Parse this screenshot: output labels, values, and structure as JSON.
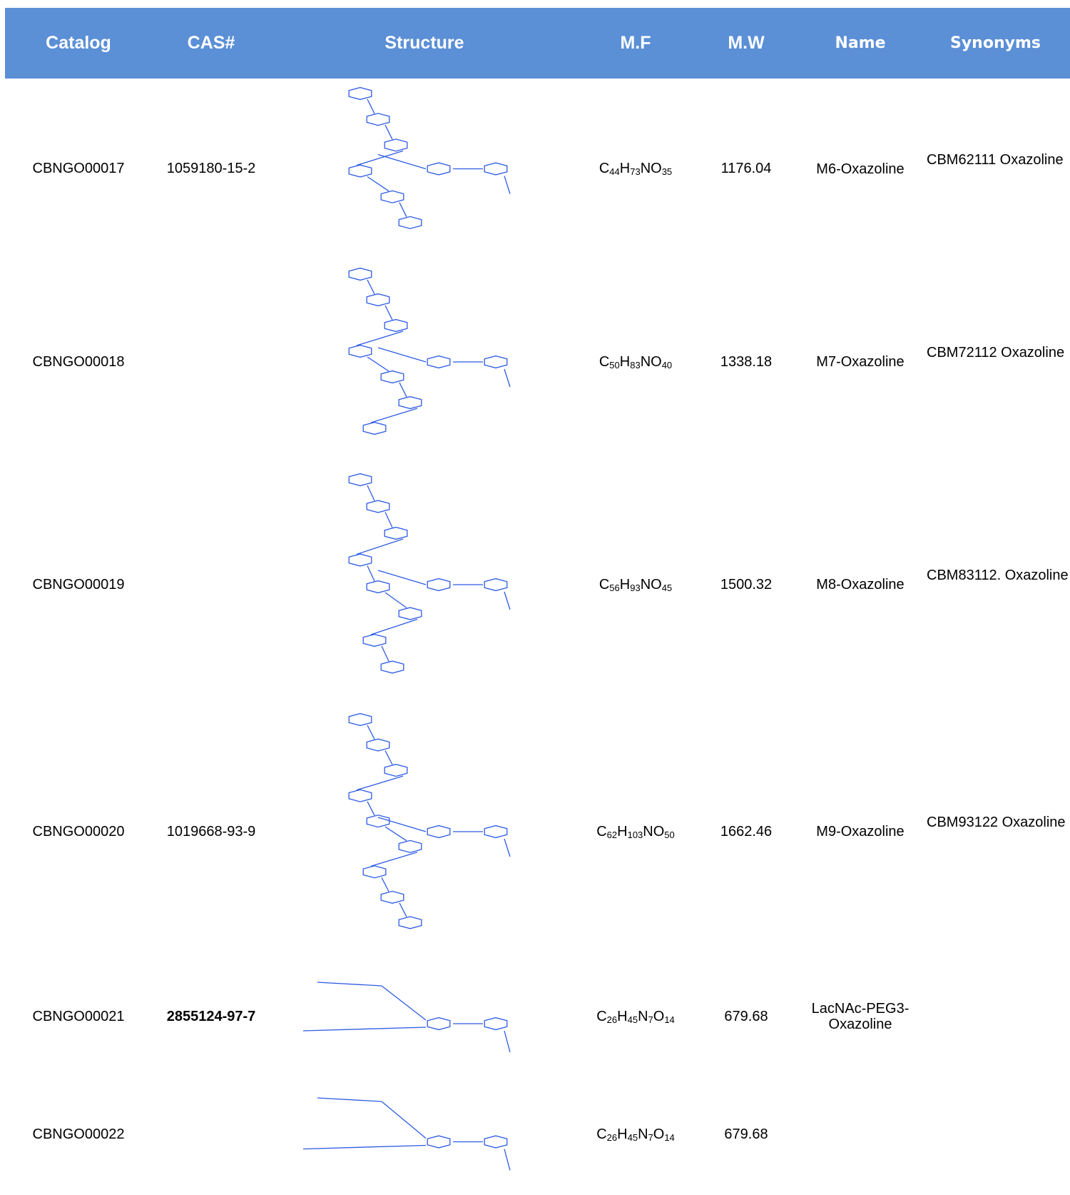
{
  "table": {
    "header": [
      "Catalog",
      "CAS#",
      "Structure",
      "M.F",
      "M.W",
      "Name",
      "Synonyms"
    ],
    "rows": [
      {
        "catalog": "CBNGO00017",
        "cas": "1059180-15-2",
        "formula": "C44H73NO35",
        "mw": "1176.04",
        "name": "M6-Oxazoline",
        "synonyms": "CBM62111 Oxazoline"
      },
      {
        "catalog": "CBNGO00018",
        "cas": null,
        "formula": "C50H83NO40",
        "mw": "1338.18",
        "name": "M7-Oxazoline",
        "synonyms": "CBM72112 Oxazoline"
      },
      {
        "catalog": "CBNGO00019",
        "cas": null,
        "formula": "C56H93NO45",
        "mw": "1500.32",
        "name": "M8-Oxazoline",
        "synonyms": "CBM83112. Oxazoline"
      },
      {
        "catalog": "CBNGO00020",
        "cas": "1019668-93-9",
        "formula": "C62H103NO50",
        "mw": "1662.46",
        "name": "M9-Oxazoline",
        "synonyms": "CBM93122 Oxazoline"
      },
      {
        "catalog": "CBNGO00021",
        "cas": "2855124-97-7",
        "cas_bold": true,
        "formula": "C26H45N7O14",
        "mw": "679.68",
        "name": "LacNAc-PEG3-Oxazoline",
        "synonyms": null
      },
      {
        "catalog": "CBNGO00022",
        "cas": null,
        "formula": "C26H45N7O14",
        "mw": "679.68",
        "name": null,
        "synonyms": null
      }
    ]
  }
}
